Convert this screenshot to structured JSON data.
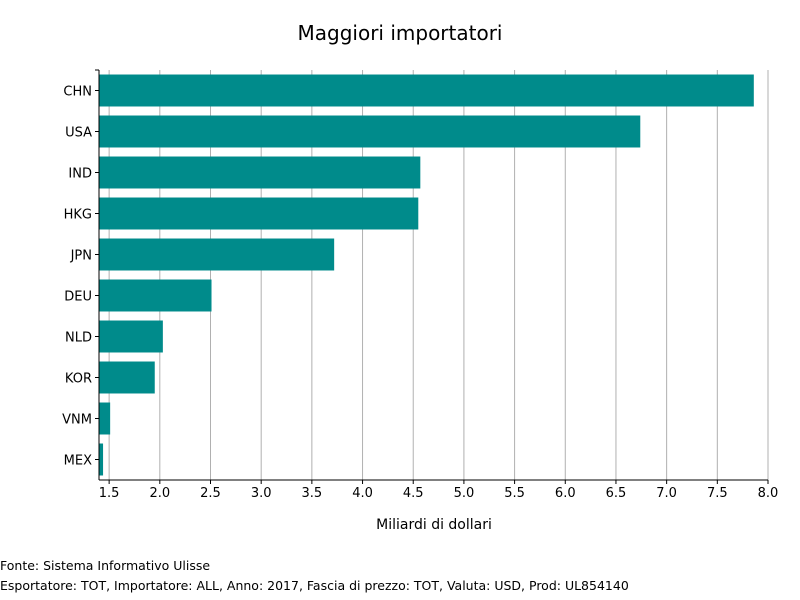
{
  "chart_data": {
    "type": "bar",
    "orientation": "horizontal",
    "title": "Maggiori importatori",
    "xlabel": "Miliardi di dollari",
    "ylabel": "",
    "categories": [
      "CHN",
      "USA",
      "IND",
      "HKG",
      "JPN",
      "DEU",
      "NLD",
      "KOR",
      "VNM",
      "MEX"
    ],
    "values": [
      7.86,
      6.74,
      4.57,
      4.55,
      3.72,
      2.51,
      2.03,
      1.95,
      1.51,
      1.44
    ],
    "xlim": [
      1.4,
      8.0
    ],
    "xticks": [
      "1.5",
      "2.0",
      "2.5",
      "3.0",
      "3.5",
      "4.0",
      "4.5",
      "5.0",
      "5.5",
      "6.0",
      "6.5",
      "7.0",
      "7.5",
      "8.0"
    ],
    "grid": "vertical",
    "bar_color": "#008b8b",
    "grid_color": "#b0b0b0"
  },
  "footer": {
    "source": "Fonte: Sistema Informativo Ulisse",
    "params": "Esportatore: TOT, Importatore: ALL, Anno: 2017, Fascia di prezzo: TOT, Valuta: USD, Prod: UL854140"
  }
}
